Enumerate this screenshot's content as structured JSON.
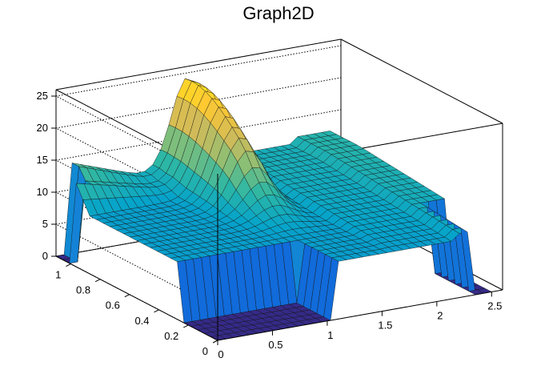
{
  "chart_data": {
    "type": "surface",
    "title": "Graph2D",
    "xlabel": "",
    "ylabel": "",
    "zlabel": "",
    "xlim": [
      0,
      2.6
    ],
    "ylim": [
      0,
      1.1
    ],
    "zlim": [
      0,
      26
    ],
    "x_ticks": [
      "0",
      "0.5",
      "1",
      "1.5",
      "2",
      "2.5"
    ],
    "y_ticks": [
      "0",
      "0.2",
      "0.4",
      "0.6",
      "0.8",
      "1"
    ],
    "z_ticks": [
      "0",
      "5",
      "10",
      "15",
      "20",
      "25"
    ],
    "x_tick_values": [
      0,
      0.5,
      1,
      1.5,
      2,
      2.5
    ],
    "y_tick_values": [
      0,
      0.2,
      0.4,
      0.6,
      0.8,
      1
    ],
    "z_tick_values": [
      0,
      5,
      10,
      15,
      20,
      25
    ],
    "grid": true,
    "colormap": [
      "#352a87",
      "#0f5cdd",
      "#1481d6",
      "#06a4ca",
      "#2eb7a4",
      "#87bf77",
      "#d1bb59",
      "#fec832",
      "#f9fb0e"
    ],
    "surface": {
      "x_range": [
        0,
        2.5
      ],
      "y_range": [
        0,
        1.1
      ],
      "nx": 34,
      "ny": 24,
      "base_level": 9,
      "ridge_peak": 24.5,
      "ridge_peak_x": 1.2,
      "ridge_peak_y": 1.05,
      "right_plateau": 11,
      "zero_region": "x < 1.05 and y < 0.25, plus small corner near x=0, y=1.1"
    }
  }
}
